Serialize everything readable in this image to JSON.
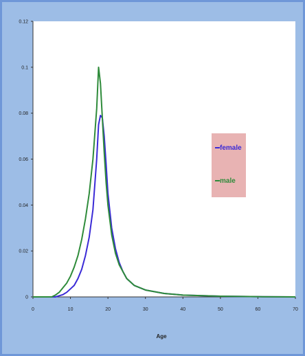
{
  "chart_data": {
    "type": "line",
    "title": "",
    "xlabel": "Age",
    "ylabel": "",
    "xlim": [
      0,
      70
    ],
    "ylim": [
      0,
      0.12
    ],
    "xticks": [
      0,
      10,
      20,
      30,
      40,
      50,
      60,
      70
    ],
    "yticks": [
      0,
      0.02,
      0.04,
      0.06,
      0.08,
      0.1,
      0.12
    ],
    "grid": false,
    "legend_position": "right",
    "x": [
      0,
      5,
      6,
      7,
      8,
      9,
      10,
      11,
      12,
      13,
      14,
      15,
      16,
      17,
      17.5,
      18,
      18.5,
      19,
      19.5,
      20,
      21,
      22,
      23,
      24,
      25,
      27,
      30,
      35,
      40,
      50,
      60,
      70
    ],
    "series": [
      {
        "name": "female",
        "color": "#3a2ad6",
        "values": [
          0,
          0,
          0,
          0.0005,
          0.001,
          0.002,
          0.0035,
          0.005,
          0.008,
          0.012,
          0.018,
          0.026,
          0.038,
          0.06,
          0.075,
          0.079,
          0.078,
          0.07,
          0.058,
          0.045,
          0.03,
          0.021,
          0.015,
          0.011,
          0.008,
          0.005,
          0.003,
          0.0015,
          0.0008,
          0.0003,
          0.0001,
          0
        ]
      },
      {
        "name": "male",
        "color": "#2e8b3a",
        "values": [
          0,
          0,
          0.0008,
          0.002,
          0.004,
          0.006,
          0.009,
          0.013,
          0.018,
          0.025,
          0.034,
          0.045,
          0.06,
          0.082,
          0.1,
          0.093,
          0.078,
          0.063,
          0.05,
          0.04,
          0.027,
          0.019,
          0.014,
          0.011,
          0.008,
          0.005,
          0.003,
          0.0015,
          0.0008,
          0.0003,
          0.0001,
          0
        ]
      }
    ]
  },
  "legend": {
    "background": "#e8b3b3",
    "items": [
      {
        "label": "female",
        "color": "#3a2ad6"
      },
      {
        "label": "male",
        "color": "#2e8b3a"
      }
    ]
  }
}
